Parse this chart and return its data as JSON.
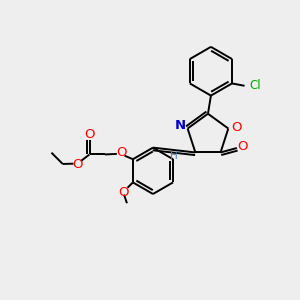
{
  "bg_color": "#eeeeee",
  "bond_color": "#000000",
  "atom_colors": {
    "O": "#ff0000",
    "N": "#0000cd",
    "Cl": "#00aa00",
    "H": "#4682b4",
    "C": "#000000"
  },
  "lw": 1.4,
  "fs": 8.0
}
